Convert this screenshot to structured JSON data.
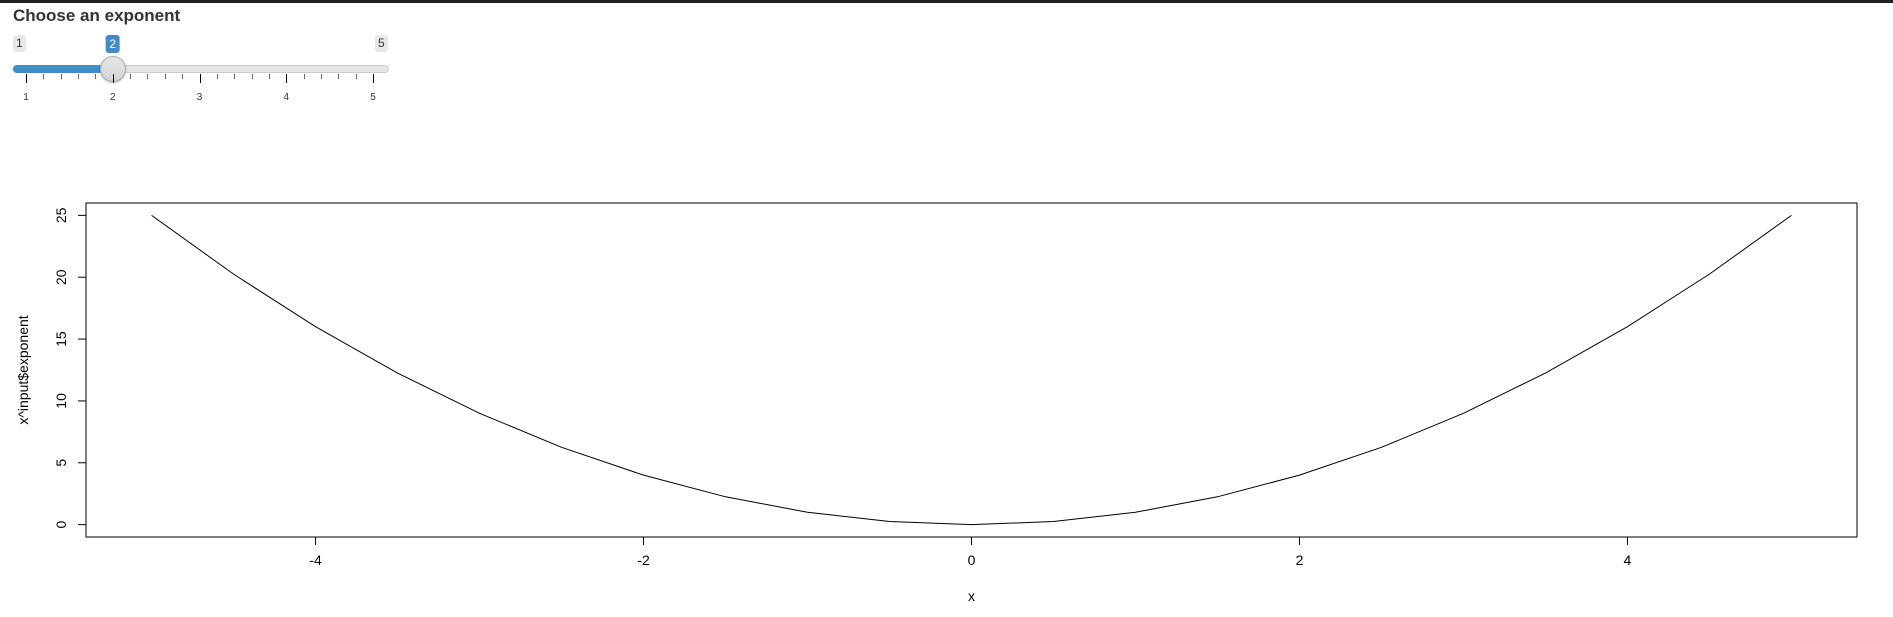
{
  "slider": {
    "label": "Choose an exponent",
    "min_label": "1",
    "max_label": "5",
    "current_value": "2",
    "min": 1,
    "max": 5,
    "value": 2,
    "tick_labels": [
      "1",
      "2",
      "3",
      "4",
      "5"
    ],
    "minor_ticks_per_major": 4,
    "accent_color": "#428bca"
  },
  "chart_data": {
    "type": "line",
    "title": "",
    "xlabel": "x",
    "ylabel": "x^input$exponent",
    "xlim": [
      -5.4,
      5.4
    ],
    "ylim": [
      -1,
      26
    ],
    "x_ticks": [
      -4,
      -2,
      0,
      2,
      4
    ],
    "x_tick_labels": [
      "-4",
      "-2",
      "0",
      "2",
      "4"
    ],
    "y_ticks": [
      0,
      5,
      10,
      15,
      20,
      25
    ],
    "y_tick_labels": [
      "0",
      "5",
      "10",
      "15",
      "20",
      "25"
    ],
    "grid": false,
    "legend": "none",
    "series": [
      {
        "x": [
          -5,
          -4.5,
          -4,
          -3.5,
          -3,
          -2.5,
          -2,
          -1.5,
          -1,
          -0.5,
          0,
          0.5,
          1,
          1.5,
          2,
          2.5,
          3,
          3.5,
          4,
          4.5,
          5
        ],
        "y": [
          25,
          20.25,
          16,
          12.25,
          9,
          6.25,
          4,
          2.25,
          1,
          0.25,
          0,
          0.25,
          1,
          2.25,
          4,
          6.25,
          9,
          12.25,
          16,
          20.25,
          25
        ]
      }
    ]
  }
}
